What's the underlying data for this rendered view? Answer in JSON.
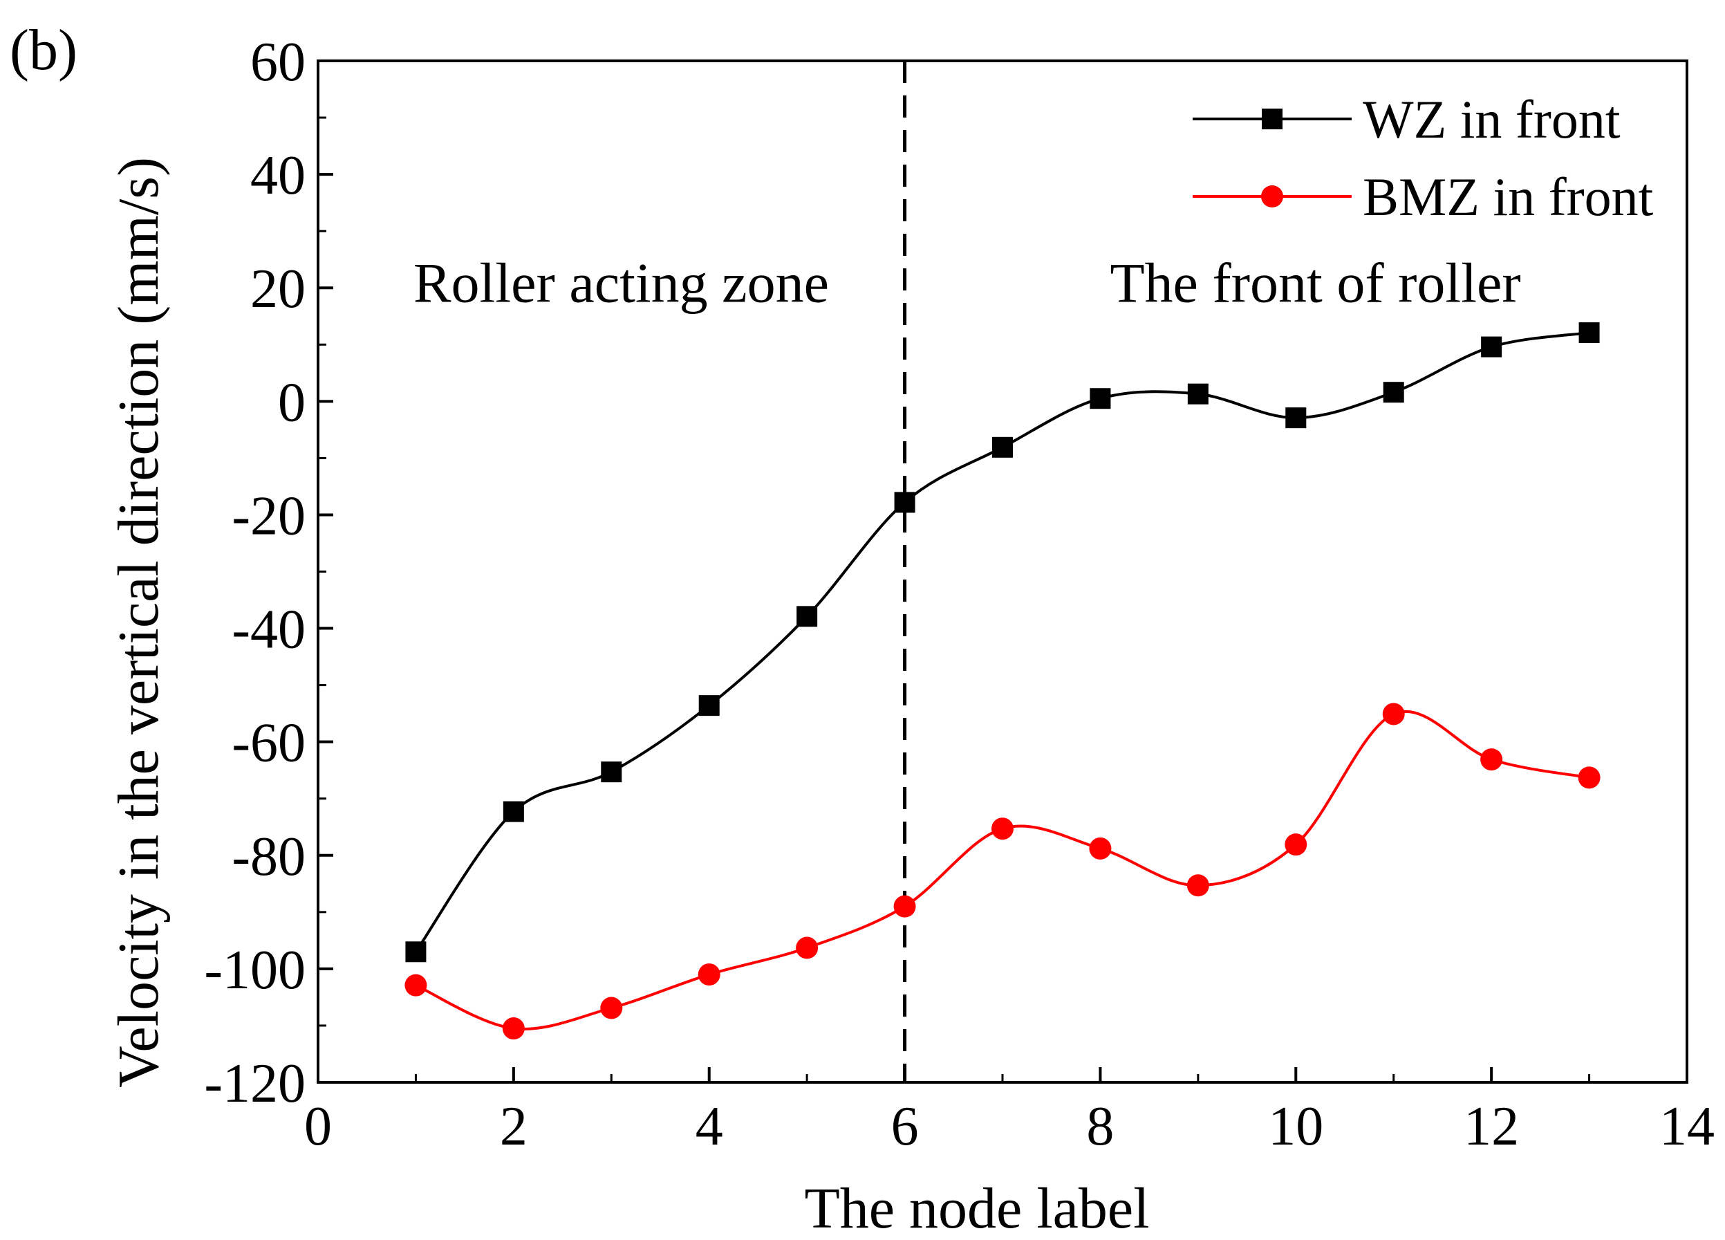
{
  "panel_label": "(b)",
  "colors": {
    "wz": "#000000",
    "bmz": "#ff0000",
    "axis": "#000000"
  },
  "chart_data": {
    "type": "line",
    "xlabel": "The node label",
    "ylabel": "Velocity in the vertical direction (mm/s)",
    "xlim": [
      0,
      14
    ],
    "ylim": [
      -120,
      60
    ],
    "xticks": [
      0,
      2,
      4,
      6,
      8,
      10,
      12,
      14
    ],
    "yticks": [
      -120,
      -100,
      -80,
      -60,
      -40,
      -20,
      0,
      20,
      40,
      60
    ],
    "grid": false,
    "legend_position": "top-right",
    "divider_x": 6,
    "x": [
      1,
      2,
      3,
      4,
      5,
      6,
      7,
      8,
      9,
      10,
      11,
      12,
      13
    ],
    "series": [
      {
        "name": "WZ in front",
        "marker": "square",
        "color": "#000000",
        "values": [
          -97,
          -72.3,
          -65.3,
          -53.6,
          -37.9,
          -17.8,
          -8.1,
          0.5,
          1.3,
          -2.9,
          1.6,
          9.6,
          12.1
        ]
      },
      {
        "name": "BMZ in front",
        "marker": "circle",
        "color": "#ff0000",
        "values": [
          -102.9,
          -110.5,
          -106.9,
          -101,
          -96.3,
          -89,
          -75.3,
          -78.8,
          -85.3,
          -78.1,
          -55.1,
          -63.1,
          -66.3
        ]
      }
    ],
    "annotations": [
      {
        "text": "Roller acting zone",
        "x": 3.1,
        "y": 17.5
      },
      {
        "text": "The front of roller",
        "x": 10.2,
        "y": 17.5
      }
    ]
  }
}
